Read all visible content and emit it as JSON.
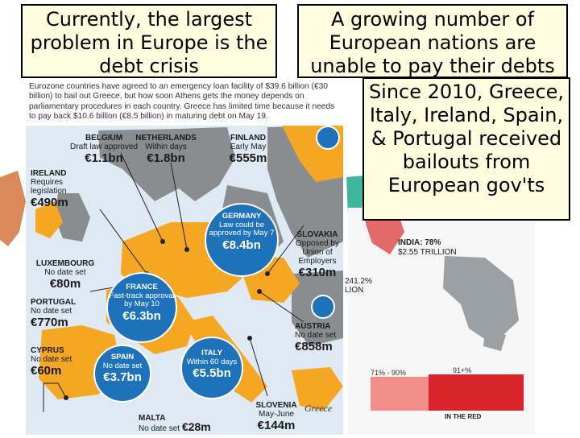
{
  "slide": {
    "left_box": "Currently, the largest problem in Europe is the debt crisis",
    "right_box": "A growing number of European nations are unable to pay their debts",
    "bailout_box": "Since 2010, Greece, Italy, Ireland, Spain, & Portugal received bailouts from European gov'ts"
  },
  "map": {
    "intro": "Eurozone countries have agreed to an emergency loan facility of $39.6 billion (€30 billion) to bail out Greece, but how soon Athens gets the money depends on parliamentary procedures in each country. Greece has limited time because it needs to pay back $10.6 billion (€8.5 billion) in maturing debt on May 19.",
    "countries": {
      "belgium": {
        "name": "BELGIUM",
        "note": "Draft law approved",
        "amount": "€1.1bn"
      },
      "netherlands": {
        "name": "NETHERLANDS",
        "note": "Within days",
        "amount": "€1.8bn"
      },
      "finland": {
        "name": "FINLAND",
        "note": "Early May",
        "amount": "€555m"
      },
      "ireland": {
        "name": "IRELAND",
        "note": "Requires legislation",
        "amount": "€490m"
      },
      "germany": {
        "name": "GERMANY",
        "note": "Law could be approved by May 7",
        "amount": "€8.4bn"
      },
      "slovakia": {
        "name": "SLOVAKIA",
        "note": "Opposed by Union of Employers",
        "amount": "€310m"
      },
      "luxembourg": {
        "name": "LUXEMBOURG",
        "note": "No date set",
        "amount": "€80m"
      },
      "france": {
        "name": "FRANCE",
        "note": "Fast-track approval by May 10",
        "amount": "€6.3bn"
      },
      "portugal": {
        "name": "PORTUGAL",
        "note": "No date set",
        "amount": "€770m"
      },
      "austria": {
        "name": "AUSTRIA",
        "note": "No date set",
        "amount": "€858m"
      },
      "cyprus": {
        "name": "CYPRUS",
        "note": "No date set",
        "amount": "€60m"
      },
      "spain": {
        "name": "SPAIN",
        "note": "No date set",
        "amount": "€3.7bn"
      },
      "italy": {
        "name": "ITALY",
        "note": "Within 60 days",
        "amount": "€5.5bn"
      },
      "slovenia": {
        "name": "SLOVENIA",
        "note": "May-June",
        "amount": "€144m"
      },
      "malta": {
        "name": "MALTA",
        "note": "No date set",
        "amount": "€28m"
      }
    },
    "credit": "Greece"
  },
  "background": {
    "india_label": "INDIA: 78%",
    "india_amount": "$2.55 TRILLION",
    "mid_label": "241.2%",
    "mid_label_2": "LION",
    "range_low": "71% - 90%",
    "range_high": "91+%",
    "in_red": "IN THE RED"
  },
  "colors": {
    "box_fill": "#fffde0",
    "map_sea": "#dfe9f3",
    "eurozone": "#f5a623",
    "non_eurozone": "#8a8d8f",
    "bubble": "#1e72b9"
  }
}
